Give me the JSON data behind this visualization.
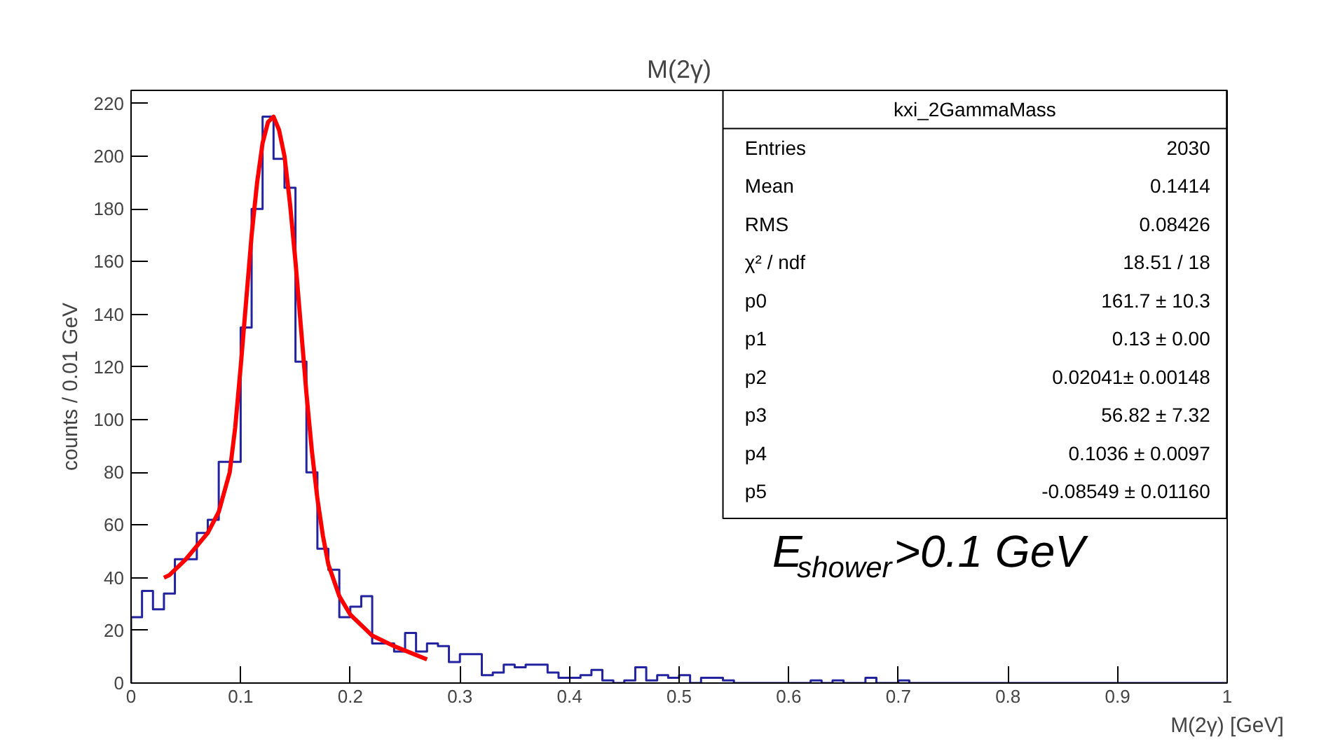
{
  "chart_data": {
    "type": "histogram",
    "title": "M(2γ)",
    "xlabel": "M(2γ) [GeV]",
    "ylabel": "counts / 0.01 GeV",
    "bins": [
      0,
      0.01,
      0.02,
      0.03,
      0.04,
      0.05,
      0.06,
      0.07,
      0.08,
      0.09,
      0.1,
      0.11,
      0.12,
      0.13,
      0.14,
      0.15,
      0.16,
      0.17,
      0.18,
      0.19,
      0.2,
      0.21,
      0.22,
      0.23,
      0.24,
      0.25,
      0.26,
      0.27,
      0.28,
      0.29,
      0.3,
      0.31,
      0.32,
      0.33,
      0.34,
      0.35,
      0.36,
      0.37,
      0.38,
      0.39,
      0.4,
      0.41,
      0.42,
      0.43,
      0.44,
      0.45,
      0.46,
      0.47,
      0.48,
      0.49,
      0.5,
      0.51,
      0.52,
      0.53,
      0.54,
      0.55,
      0.56,
      0.57,
      0.58,
      0.59,
      0.6,
      0.61,
      0.62,
      0.63,
      0.64,
      0.65,
      0.66,
      0.67,
      0.68,
      0.69,
      0.7,
      0.71,
      0.72,
      0.73,
      0.74,
      0.75,
      0.76,
      0.77,
      0.78,
      0.79,
      0.8,
      0.81,
      0.82,
      0.83,
      0.84,
      0.85,
      0.86,
      0.87,
      0.88,
      0.89,
      0.9,
      0.91,
      0.92,
      0.93,
      0.94,
      0.95,
      0.96,
      0.97,
      0.98,
      0.99,
      1
    ],
    "values": [
      25,
      35,
      28,
      34,
      47,
      47,
      57,
      62,
      84,
      84,
      135,
      180,
      215,
      199,
      188,
      122,
      80,
      51,
      43,
      25,
      29,
      33,
      15,
      15,
      12,
      19,
      12,
      15,
      14,
      8,
      11,
      11,
      3,
      4,
      7,
      6,
      7,
      7,
      4,
      2,
      2,
      3,
      5,
      1,
      0,
      1,
      6,
      1,
      3,
      2,
      3,
      0,
      2,
      2,
      1,
      0,
      0,
      0,
      0,
      0,
      0,
      0,
      1,
      0,
      1,
      0,
      0,
      2,
      0,
      0,
      1,
      0,
      0,
      0,
      0,
      0,
      0,
      0,
      0,
      0,
      0,
      0,
      0,
      0,
      0,
      0,
      0,
      0,
      0,
      0,
      0,
      0,
      0,
      0,
      0,
      0,
      0,
      0,
      0,
      0
    ],
    "color": "#2323a0",
    "series": [
      {
        "type": "line",
        "color": "#ff0000",
        "x": [
          0.03,
          0.035,
          0.05,
          0.07,
          0.08,
          0.09,
          0.095,
          0.1,
          0.105,
          0.11,
          0.115,
          0.12,
          0.125,
          0.13,
          0.135,
          0.14,
          0.145,
          0.15,
          0.155,
          0.16,
          0.165,
          0.17,
          0.175,
          0.18,
          0.19,
          0.2,
          0.22,
          0.24,
          0.27
        ],
        "values": [
          40,
          41,
          47,
          57,
          65,
          80,
          97,
          120,
          145,
          170,
          190,
          205,
          213,
          215,
          210,
          200,
          182,
          160,
          135,
          110,
          88,
          70,
          56,
          45,
          33,
          26,
          18,
          14,
          9
        ]
      }
    ],
    "xlim": [
      0,
      1
    ],
    "ylim": [
      0,
      225
    ],
    "xticks": [
      0,
      0.1,
      0.2,
      0.3,
      0.4,
      0.5,
      0.6,
      0.7,
      0.8,
      0.9,
      1
    ],
    "yticks": [
      0,
      20,
      40,
      60,
      80,
      100,
      120,
      140,
      160,
      180,
      200,
      220
    ],
    "grid": false,
    "annotations": [
      "kxi_2GammaMass",
      "Entries",
      "2030",
      "Mean",
      "0.1414",
      "RMS",
      "0.08426",
      "χ² / ndf",
      "18.51 / 18",
      "p0",
      "161.7 ± 10.3",
      "p1",
      "0.13 ± 0.00",
      "p2",
      "0.02041± 0.00148",
      "p3",
      "56.82 ± 7.32",
      "p4",
      "0.1036 ± 0.0097",
      "p5",
      "-0.08549 ± 0.01160",
      "E$_{shower}$>0.1 GeV"
    ]
  }
}
